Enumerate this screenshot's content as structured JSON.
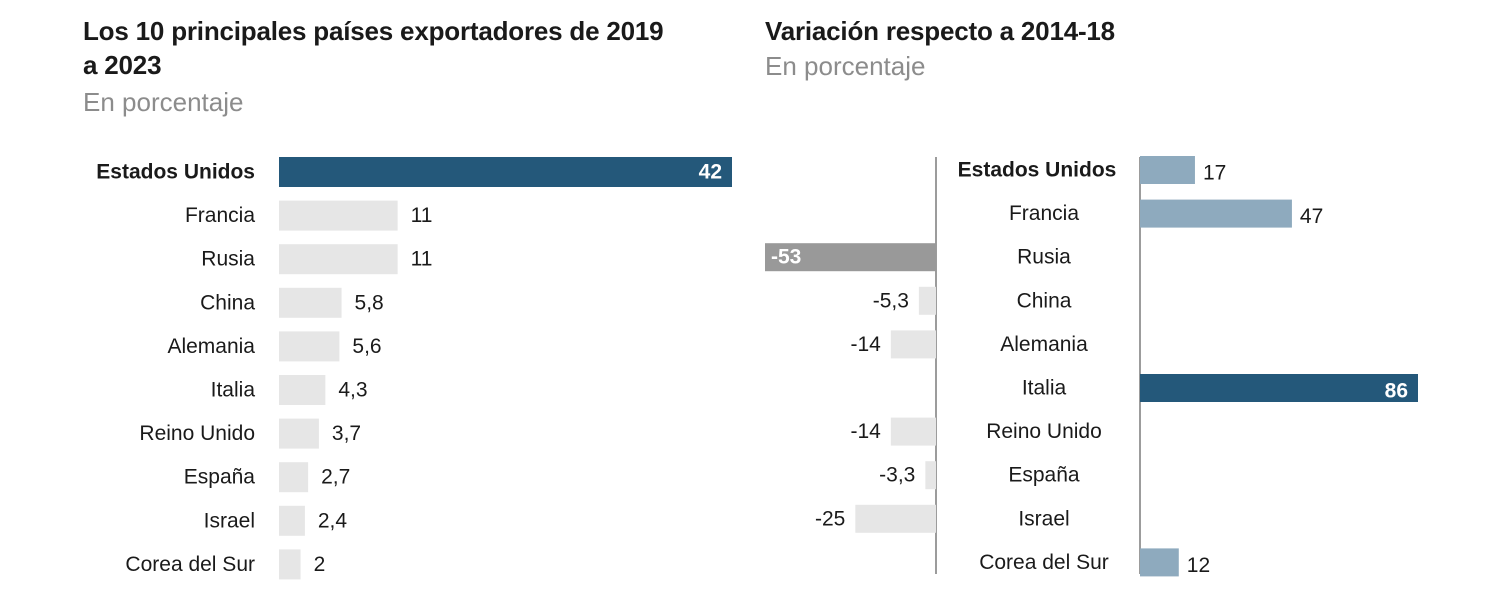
{
  "chart_data": [
    {
      "type": "bar",
      "orientation": "horizontal",
      "title": "Los 10 principales países exportadores de 2019 a 2023",
      "subtitle": "En porcentaje",
      "categories": [
        "Estados Unidos",
        "Francia",
        "Rusia",
        "China",
        "Alemania",
        "Italia",
        "Reino Unido",
        "España",
        "Israel",
        "Corea del Sur"
      ],
      "values": [
        42,
        11,
        11,
        5.8,
        5.6,
        4.3,
        3.7,
        2.7,
        2.4,
        2
      ],
      "value_labels": [
        "42",
        "11",
        "11",
        "5,8",
        "5,6",
        "4,3",
        "3,7",
        "2,7",
        "2,4",
        "2"
      ],
      "highlight": "Estados Unidos",
      "colors": {
        "highlight": "#24587a",
        "default": "#e6e6e6"
      },
      "grid": false,
      "legend": "none"
    },
    {
      "type": "bar",
      "orientation": "horizontal-diverging",
      "title": "Variación respecto a 2014-18",
      "subtitle": "En porcentaje",
      "categories": [
        "Estados Unidos",
        "Francia",
        "Rusia",
        "China",
        "Alemania",
        "Italia",
        "Reino Unido",
        "España",
        "Israel",
        "Corea del Sur"
      ],
      "values": [
        17,
        47,
        -53,
        -5.3,
        -14,
        86,
        -14,
        -3.3,
        -25,
        12
      ],
      "value_labels": [
        "17",
        "47",
        "-53",
        "-5,3",
        "-14",
        "86",
        "-14",
        "-3,3",
        "-25",
        "12"
      ],
      "highlight_positive": "Italia",
      "highlight_negative": "Rusia",
      "colors": {
        "positive": "#8eaabe",
        "negative": "#e6e6e6",
        "highlight_positive": "#24587a",
        "highlight_negative": "#999999",
        "axis": "#666666"
      },
      "grid": false,
      "legend": "none"
    }
  ]
}
